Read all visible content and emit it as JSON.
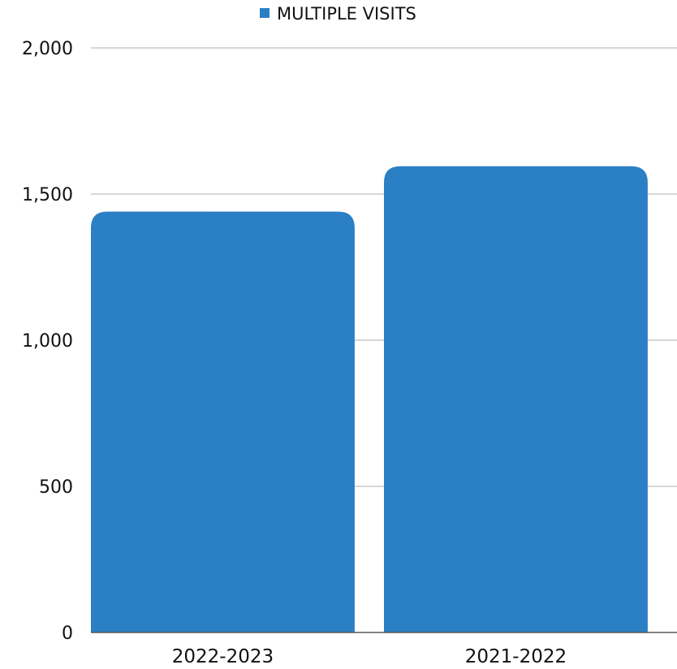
{
  "chart_data": {
    "type": "bar",
    "categories": [
      "2022-2023",
      "2021-2022"
    ],
    "series": [
      {
        "name": "MULTIPLE VISITS",
        "values": [
          1440,
          1595
        ],
        "color": "#2B7FC4"
      }
    ],
    "y_ticks": [
      0,
      500,
      1000,
      1500,
      2000
    ],
    "y_tick_labels": [
      "0",
      "500",
      "1,000",
      "1,500",
      "2,000"
    ],
    "ylim": [
      0,
      2000
    ],
    "grid": true,
    "legend_position": "top-center",
    "gridline_color": "#BFBFBF",
    "axis_line_color": "#595959"
  }
}
